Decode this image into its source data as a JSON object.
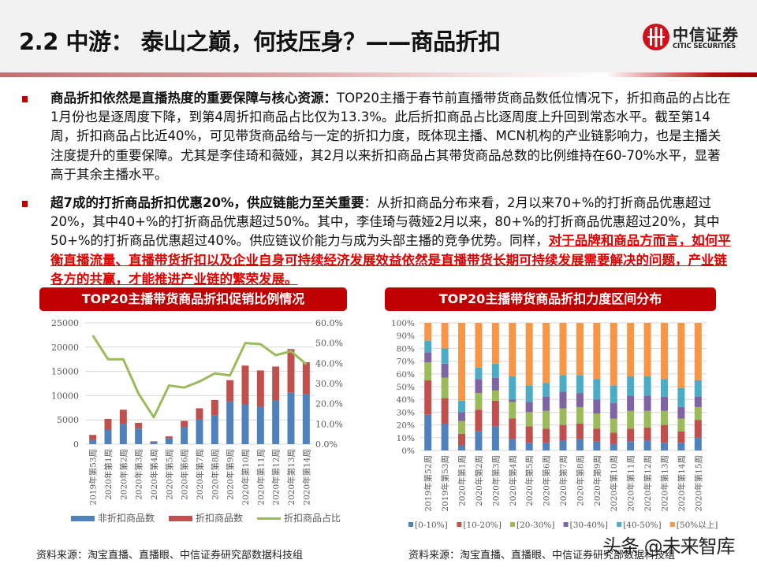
{
  "header": {
    "title": "2.2 中游： 泰山之巅，何技压身？——商品折扣",
    "logo_cn": "中信证券",
    "logo_en": "CITIC SECURITIES",
    "brand_color": "#c00000"
  },
  "bullets": [
    {
      "strong": "商品折扣依然是直播热度的重要保障与核心资源：",
      "text": "TOP20主播于春节前直播带货商品数低位情况下，折扣商品的占比在1月份也是逐周度下降，到第4周折扣商品占比仅为13.3%。此后折扣商品占比逐周度上升回到常态水平。截至第14周，折扣商品占比近40%，可见带货商品给与一定的折扣力度，既体现主播、MCN机构的产业链影响力，也是主播关注度提升的重要保障。尤其是李佳琦和薇娅，其2月以来折扣商品占其带货商品总数的比例维持在60-70%水平，显著高于其余主播水平。",
      "red": ""
    },
    {
      "strong": "超7成的打折商品折扣优惠20%，供应链能力至关重要",
      "text": "：从折扣商品分布来看，2月以来70+%的打折商品优惠超过20%，其中40+%的打折商品优惠超过50%。其中，李佳琦与薇娅2月以来，80+%的打折商品优惠超过20%，其中50+%的打折商品优惠超过40%。供应链议价能力与成为头部主播的竞争优势。同样，",
      "red": "对于品牌和商品方而言，如何平衡直播流量、直播带货折扣以及企业自身可持续经济发展效益依然是直播带货长期可持续发展需要解决的问题，产业链各方的共赢，才能推进产业链的繁荣发展。"
    }
  ],
  "left_chart": {
    "banner": "TOP20主播带货商品折扣促销比例情况",
    "source": "资料来源：淘宝直播、直播眼、中信证券研究部数据科技组"
  },
  "right_chart": {
    "banner": "TOP20主播带货商品折扣力度区间分布",
    "source": "资料来源：淘宝直播、直播眼、中信证券研究部数据科技组"
  },
  "watermark": "头条 @未来智库",
  "chart_data": [
    {
      "type": "bar",
      "title": "TOP20主播带货商品折扣促销比例情况",
      "stacked": true,
      "categories": [
        "2019年第53周",
        "2020年第1周",
        "2020年第2周",
        "2020年第3周",
        "2020年第4周",
        "2020年第5周",
        "2020年第6周",
        "2020年第7周",
        "2020年第8周",
        "2020年第9周",
        "2020年第10周",
        "2020年第11周",
        "2020年第12周",
        "2020年第13周",
        "2020年第14周"
      ],
      "series": [
        {
          "name": "非折扣商品数",
          "type": "bar",
          "axis": "left",
          "color": "#4f81bd",
          "values": [
            900,
            3000,
            4200,
            3200,
            500,
            1200,
            3500,
            5100,
            5900,
            8800,
            8200,
            7700,
            9000,
            10600,
            10300
          ]
        },
        {
          "name": "折扣商品数",
          "type": "bar",
          "axis": "left",
          "color": "#c0504d",
          "values": [
            1000,
            2200,
            2900,
            1200,
            100,
            400,
            1300,
            2300,
            3200,
            4400,
            8000,
            7500,
            7000,
            9000,
            6600
          ]
        },
        {
          "name": "折扣商品占比",
          "type": "line",
          "axis": "right",
          "color": "#9bbb59",
          "values": [
            53.8,
            42.0,
            42.0,
            25.0,
            13.3,
            29.0,
            28.0,
            31.0,
            35.0,
            34.0,
            50.0,
            49.5,
            44.0,
            46.0,
            39.5
          ]
        }
      ],
      "xlabel": "",
      "ylabel": "",
      "ylim": [
        0,
        25000
      ],
      "yticks": [
        "0",
        "5000",
        "10000",
        "15000",
        "20000",
        "25000"
      ],
      "y2lim": [
        0,
        60
      ],
      "y2ticks": [
        "0.0%",
        "10.0%",
        "20.0%",
        "30.0%",
        "40.0%",
        "50.0%",
        "60.0%"
      ],
      "grid": true,
      "legend_position": "bottom"
    },
    {
      "type": "bar",
      "title": "TOP20主播带货商品折扣力度区间分布",
      "stacked": true,
      "percent": true,
      "categories": [
        "2019年第52周",
        "2019年第53周",
        "2020年第1周",
        "2020年第2周",
        "2020年第3周",
        "2020年第4周",
        "2020年第5周",
        "2020年第6周",
        "2020年第7周",
        "2020年第8周",
        "2020年第9周",
        "2020年第10周",
        "2020年第11周",
        "2020年第12周",
        "2020年第13周",
        "2020年第14周",
        "2020年第15周"
      ],
      "series": [
        {
          "name": "[0-10%]",
          "color": "#4f81bd",
          "values": [
            28,
            21,
            4,
            15,
            19,
            9,
            6,
            6,
            8,
            9,
            7,
            5,
            7,
            8,
            6,
            6,
            10
          ]
        },
        {
          "name": "[10-20%]",
          "color": "#c0504d",
          "values": [
            27,
            20,
            9,
            17,
            20,
            16,
            13,
            11,
            12,
            12,
            10,
            9,
            10,
            10,
            14,
            9,
            14
          ]
        },
        {
          "name": "[20-30%]",
          "color": "#9bbb59",
          "values": [
            14,
            16,
            10,
            13,
            8,
            13,
            11,
            14,
            13,
            13,
            12,
            11,
            14,
            13,
            11,
            10,
            10
          ]
        },
        {
          "name": "[30-40%]",
          "color": "#8064a2",
          "values": [
            8,
            11,
            7,
            11,
            10,
            2,
            8,
            11,
            13,
            11,
            11,
            12,
            12,
            12,
            11,
            9,
            8
          ]
        },
        {
          "name": "[40-50%]",
          "color": "#4bacc6",
          "values": [
            9,
            12,
            9,
            9,
            11,
            18,
            13,
            11,
            13,
            14,
            16,
            14,
            15,
            15,
            14,
            15,
            13
          ]
        },
        {
          "name": "[50%以上]",
          "color": "#f79646",
          "values": [
            14,
            20,
            61,
            35,
            32,
            42,
            49,
            47,
            41,
            41,
            44,
            49,
            42,
            42,
            44,
            51,
            45
          ]
        }
      ],
      "xlabel": "",
      "ylabel": "",
      "ylim": [
        0,
        100
      ],
      "yticks": [
        "0%",
        "10%",
        "20%",
        "30%",
        "40%",
        "50%",
        "60%",
        "70%",
        "80%",
        "90%",
        "100%"
      ],
      "grid": true,
      "legend_position": "bottom"
    }
  ]
}
